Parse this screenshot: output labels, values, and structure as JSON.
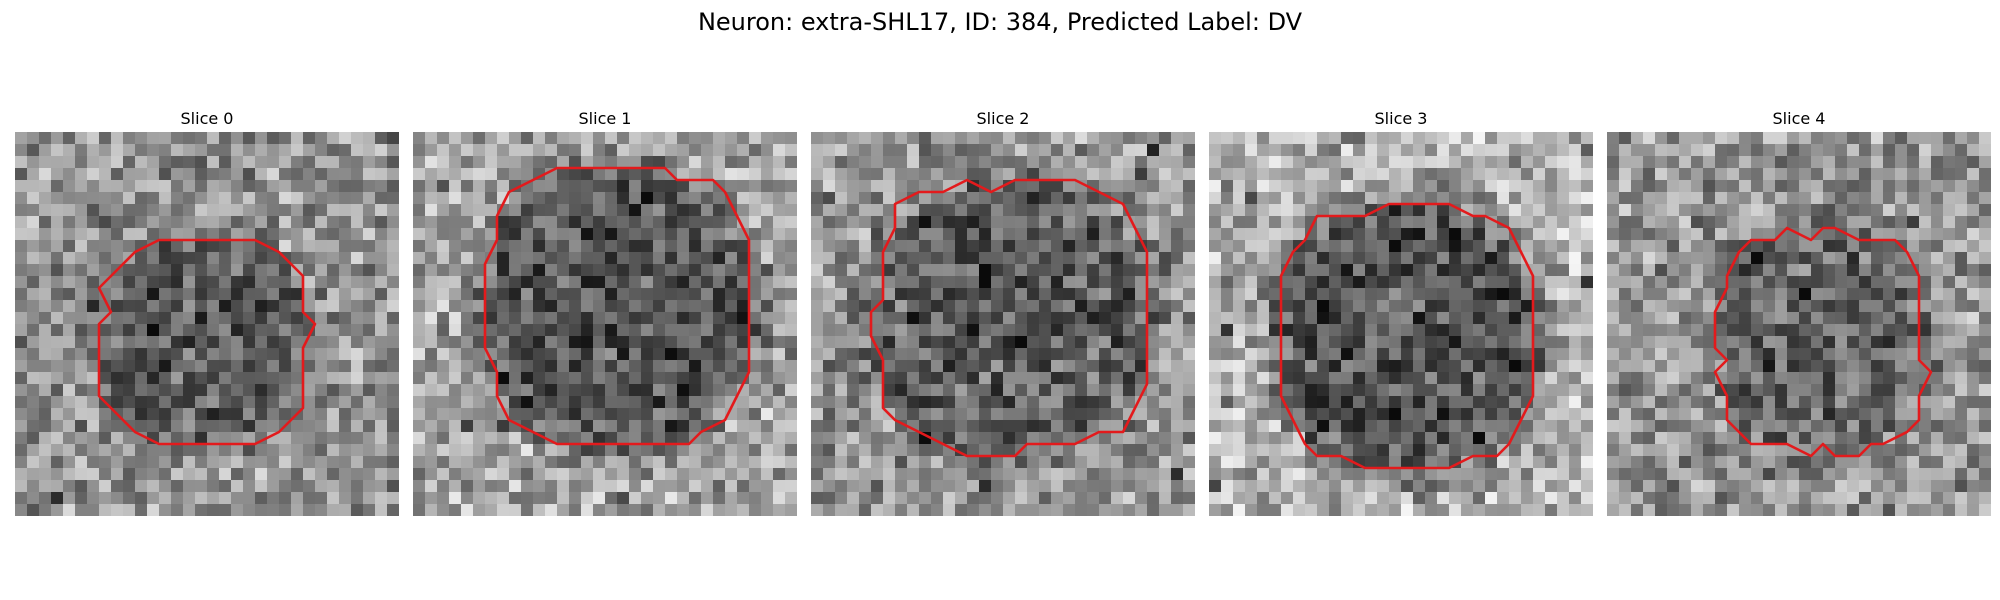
{
  "figure": {
    "title": "Neuron: extra-SHL17, ID: 384, Predicted Label: DV",
    "contour_color": "#e31a1c",
    "colormap": "grayscale"
  },
  "slices": [
    {
      "title": "Slice 0"
    },
    {
      "title": "Slice 1"
    },
    {
      "title": "Slice 2"
    },
    {
      "title": "Slice 3"
    },
    {
      "title": "Slice 4"
    }
  ]
}
